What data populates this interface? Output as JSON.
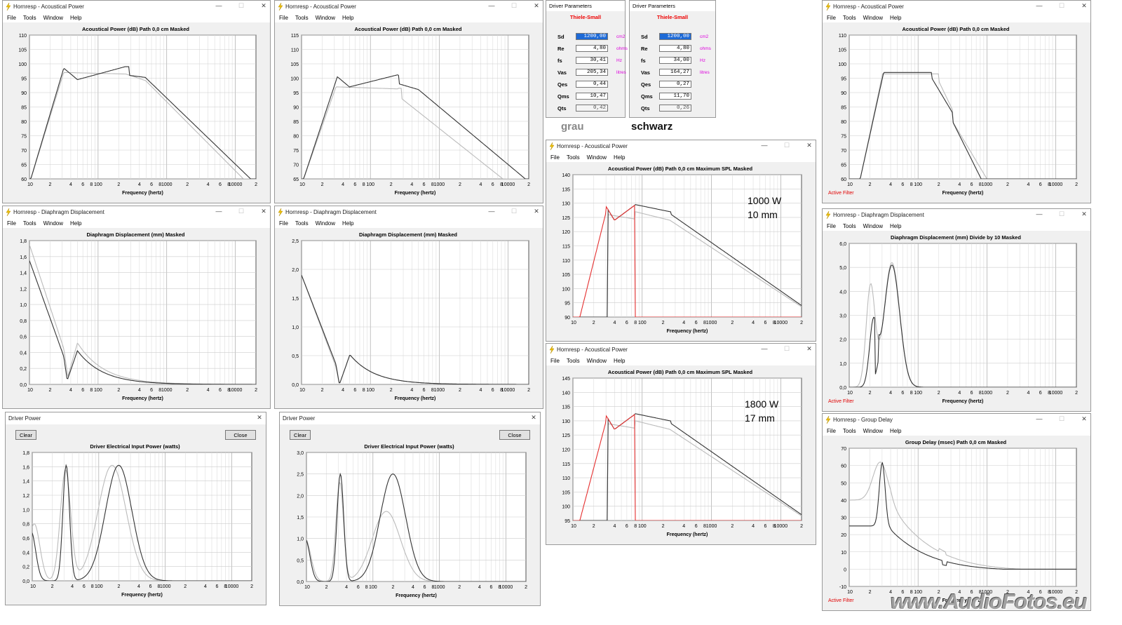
{
  "windows": [
    {
      "id": "w1",
      "title": "Hornresp - Acoustical Power",
      "menu": [
        "File",
        "Tools",
        "Window",
        "Help"
      ],
      "graph_title": "Acoustical Power (dB)   Path 0,0 cm   Masked",
      "yticks": [
        "110",
        "105",
        "100",
        "95",
        "90",
        "85",
        "80",
        "75",
        "70",
        "65",
        "60"
      ],
      "xlabel": "Frequency (hertz)"
    },
    {
      "id": "w2",
      "title": "Hornresp - Acoustical Power",
      "menu": [
        "File",
        "Tools",
        "Window",
        "Help"
      ],
      "graph_title": "Acoustical Power (dB)   Path 0,0 cm   Masked",
      "yticks": [
        "115",
        "110",
        "105",
        "100",
        "95",
        "90",
        "85",
        "80",
        "75",
        "70",
        "65"
      ],
      "xlabel": "Frequency (hertz)"
    },
    {
      "id": "w3",
      "title": "Hornresp - Diaphragm Displacement",
      "menu": [
        "File",
        "Tools",
        "Window",
        "Help"
      ],
      "graph_title": "Diaphragm Displacement (mm)   Masked",
      "yticks": [
        "1,8",
        "1,6",
        "1,4",
        "1,2",
        "1,0",
        "0,8",
        "0,6",
        "0,4",
        "0,2",
        "0,0"
      ],
      "xlabel": "Frequency (hertz)"
    },
    {
      "id": "w4",
      "title": "Hornresp - Diaphragm Displacement",
      "menu": [
        "File",
        "Tools",
        "Window",
        "Help"
      ],
      "graph_title": "Diaphragm Displacement (mm)   Masked",
      "yticks": [
        "2,5",
        "2,0",
        "1,5",
        "1,0",
        "0,5",
        "0,0"
      ],
      "xlabel": "Frequency (hertz)"
    },
    {
      "id": "w5",
      "title": "Driver Power",
      "clear": "Clear",
      "close": "Close",
      "graph_title": "Driver Electrical Input Power (watts)",
      "yticks": [
        "1,8",
        "1,6",
        "1,4",
        "1,2",
        "1,0",
        "0,8",
        "0,6",
        "0,4",
        "0,2",
        "0,0"
      ],
      "xlabel": "Frequency (hertz)"
    },
    {
      "id": "w6",
      "title": "Driver Power",
      "clear": "Clear",
      "close": "Close",
      "graph_title": "Driver Electrical Input Power (watts)",
      "yticks": [
        "3,0",
        "2,5",
        "2,0",
        "1,5",
        "1,0",
        "0,5",
        "0,0"
      ],
      "xlabel": "Frequency (hertz)"
    },
    {
      "id": "w7",
      "title": "Hornresp - Acoustical Power",
      "menu": [
        "File",
        "Tools",
        "Window",
        "Help"
      ],
      "graph_title": "Acoustical Power (dB)   Path 0,0 cm   Maximum SPL   Masked",
      "yticks": [
        "140",
        "135",
        "130",
        "125",
        "120",
        "115",
        "110",
        "105",
        "100",
        "95",
        "90"
      ],
      "xlabel": "Frequency (hertz)"
    },
    {
      "id": "w8",
      "title": "Hornresp - Acoustical Power",
      "menu": [
        "File",
        "Tools",
        "Window",
        "Help"
      ],
      "graph_title": "Acoustical Power (dB)   Path 0,0 cm   Maximum SPL   Masked",
      "yticks": [
        "145",
        "140",
        "135",
        "130",
        "125",
        "120",
        "115",
        "110",
        "105",
        "100",
        "95"
      ],
      "xlabel": "Frequency (hertz)"
    },
    {
      "id": "w9",
      "title": "Hornresp - Acoustical Power",
      "menu": [
        "File",
        "Tools",
        "Window",
        "Help"
      ],
      "graph_title": "Acoustical Power (dB)   Path 0,0 cm   Masked",
      "yticks": [
        "110",
        "105",
        "100",
        "95",
        "90",
        "85",
        "80",
        "75",
        "70",
        "65",
        "60"
      ],
      "xlabel": "Frequency (hertz)",
      "filter": "Active Filter"
    },
    {
      "id": "w10",
      "title": "Hornresp - Diaphragm Displacement",
      "menu": [
        "File",
        "Tools",
        "Window",
        "Help"
      ],
      "graph_title": "Diaphragm Displacement (mm)   Divide by 10   Masked",
      "yticks": [
        "6,0",
        "5,0",
        "4,0",
        "3,0",
        "2,0",
        "1,0",
        "0,0"
      ],
      "xlabel": "Frequency (hertz)",
      "filter": "Active Filter"
    },
    {
      "id": "w11",
      "title": "Hornresp - Group Delay",
      "menu": [
        "File",
        "Tools",
        "Window",
        "Help"
      ],
      "graph_title": "Group Delay (msec)   Path 0,0 cm   Masked",
      "yticks": [
        "70",
        "60",
        "50",
        "40",
        "30",
        "20",
        "10",
        "0",
        "-10"
      ],
      "xlabel": "Frequency (hertz)",
      "filter": "Active Filter"
    }
  ],
  "xticks": [
    "10",
    "2",
    "4",
    "6",
    "8",
    "100",
    "2",
    "4",
    "6",
    "8",
    "1000",
    "2",
    "4",
    "6",
    "8",
    "10000",
    "2"
  ],
  "driver_params": [
    {
      "title": "Driver Parameters",
      "head": "Thiele-Small",
      "rows": [
        [
          "Sd",
          "1200,00",
          "cm2"
        ],
        [
          "Re",
          "4,80",
          "ohms"
        ],
        [
          "fs",
          "30,41",
          "Hz"
        ],
        [
          "Vas",
          "205,34",
          "litres"
        ],
        [
          "Qes",
          "0,44",
          ""
        ],
        [
          "Qms",
          "10,47",
          ""
        ],
        [
          "Qts",
          "0,42",
          ""
        ]
      ]
    },
    {
      "title": "Driver Parameters",
      "head": "Thiele-Small",
      "rows": [
        [
          "Sd",
          "1200,00",
          "cm2"
        ],
        [
          "Re",
          "4,80",
          "ohms"
        ],
        [
          "fs",
          "34,00",
          "Hz"
        ],
        [
          "Vas",
          "164,27",
          "litres"
        ],
        [
          "Qes",
          "0,27",
          ""
        ],
        [
          "Qms",
          "11,70",
          ""
        ],
        [
          "Qts",
          "0,26",
          ""
        ]
      ]
    }
  ],
  "labels": {
    "grau": "grau",
    "schwarz": "schwarz",
    "power1": "1000 W",
    "exc1": "10 mm",
    "power2": "1800 W",
    "exc2": "17 mm"
  },
  "watermark": "www.AudioFotos.eu",
  "colors": {
    "black_trace": "#333333",
    "grey_trace": "#bbbbbb",
    "spl_trace": "#e53030",
    "filter_red": "#e00000",
    "unit_magenta": "#dd00dd"
  }
}
